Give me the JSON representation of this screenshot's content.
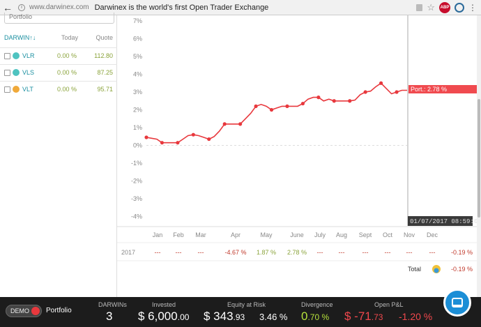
{
  "browser": {
    "back": "←",
    "url": "www.darwinex.com",
    "title": "Darwinex is the world's first Open Trader Exchange",
    "abp": "ABP"
  },
  "left_panel": {
    "search_value": "Portfolio",
    "headers": {
      "darwin": "DARWIN↑↓",
      "today": "Today",
      "quote": "Quote"
    },
    "rows": [
      {
        "name": "VLR",
        "today": "0.00 %",
        "quote": "112.80",
        "color": "#4fc3c0"
      },
      {
        "name": "VLS",
        "today": "0.00 %",
        "quote": "87.25",
        "color": "#4fc3c0"
      },
      {
        "name": "VLT",
        "today": "0.00 %",
        "quote": "95.71",
        "color": "#f0a93a"
      }
    ]
  },
  "chart_data": {
    "type": "line",
    "y_ticks": [
      "7%",
      "6%",
      "5%",
      "4%",
      "3%",
      "2%",
      "1%",
      "0%",
      "-1%",
      "-2%",
      "-3%",
      "-4%"
    ],
    "ylim": [
      -4,
      7
    ],
    "x_ticks": [
      "Jan",
      "Feb",
      "Mar",
      "Apr",
      "May",
      "June",
      "July",
      "Aug",
      "Sept",
      "Oct",
      "Nov",
      "Dec"
    ],
    "series": [
      {
        "color": "#e8383d",
        "x": [
          0,
          0.2,
          0.4,
          0.6,
          0.8,
          1.0,
          1.2,
          1.4,
          1.6,
          1.8,
          2.0,
          2.2,
          2.4,
          2.6,
          2.8,
          3.0,
          3.2,
          3.4,
          3.6,
          3.8,
          4.0,
          4.2,
          4.4,
          4.6,
          4.8,
          5.0,
          5.2,
          5.4,
          5.6,
          5.8,
          6.0,
          6.2,
          6.4,
          6.6,
          6.8,
          7.0,
          7.2,
          7.4,
          7.6,
          7.8,
          8.0,
          8.2,
          8.4,
          8.6,
          8.8,
          9.0,
          9.2,
          9.4,
          9.6,
          9.8,
          10.0
        ],
        "y": [
          0.45,
          0.4,
          0.35,
          0.15,
          0.15,
          0.15,
          0.15,
          0.35,
          0.55,
          0.6,
          0.55,
          0.45,
          0.35,
          0.5,
          0.8,
          1.2,
          1.2,
          1.2,
          1.2,
          1.5,
          1.8,
          2.2,
          2.3,
          2.2,
          2.0,
          2.1,
          2.2,
          2.2,
          2.2,
          2.2,
          2.35,
          2.6,
          2.7,
          2.7,
          2.5,
          2.6,
          2.5,
          2.5,
          2.5,
          2.5,
          2.55,
          2.85,
          3.0,
          3.05,
          3.3,
          3.5,
          3.2,
          2.9,
          3.0,
          3.1,
          3.1
        ]
      }
    ],
    "tooltip": "Port.: 2.78 %",
    "hover_time": "01/07/2017 08:59:00"
  },
  "returns_row": {
    "year": "2017",
    "months": [
      "---",
      "---",
      "---",
      "-4.67 %",
      "1.87 %",
      "2.78 %",
      "---",
      "---",
      "---",
      "---",
      "---",
      "---"
    ],
    "total": "-0.19 %"
  },
  "total_row": {
    "label": "Total",
    "value": "-0.19 %"
  },
  "status_bar": {
    "demo_label": "DEMO",
    "portfolio_label": "Portfolio",
    "darwins": {
      "label": "DARWINs",
      "value": "3"
    },
    "invested": {
      "label": "Invested",
      "value": "$ 6,000",
      "cents": ".00"
    },
    "equity_at_risk": {
      "label": "Equity at Risk",
      "value": "$ 343",
      "cents": ".93",
      "pct": "3.46 %"
    },
    "divergence": {
      "label": "Divergence",
      "value": "0",
      "cents": ".70 %"
    },
    "open_pnl": {
      "label": "Open P&L",
      "value": "$ -71",
      "cents": ".73",
      "pct": "-1.20 %"
    }
  }
}
